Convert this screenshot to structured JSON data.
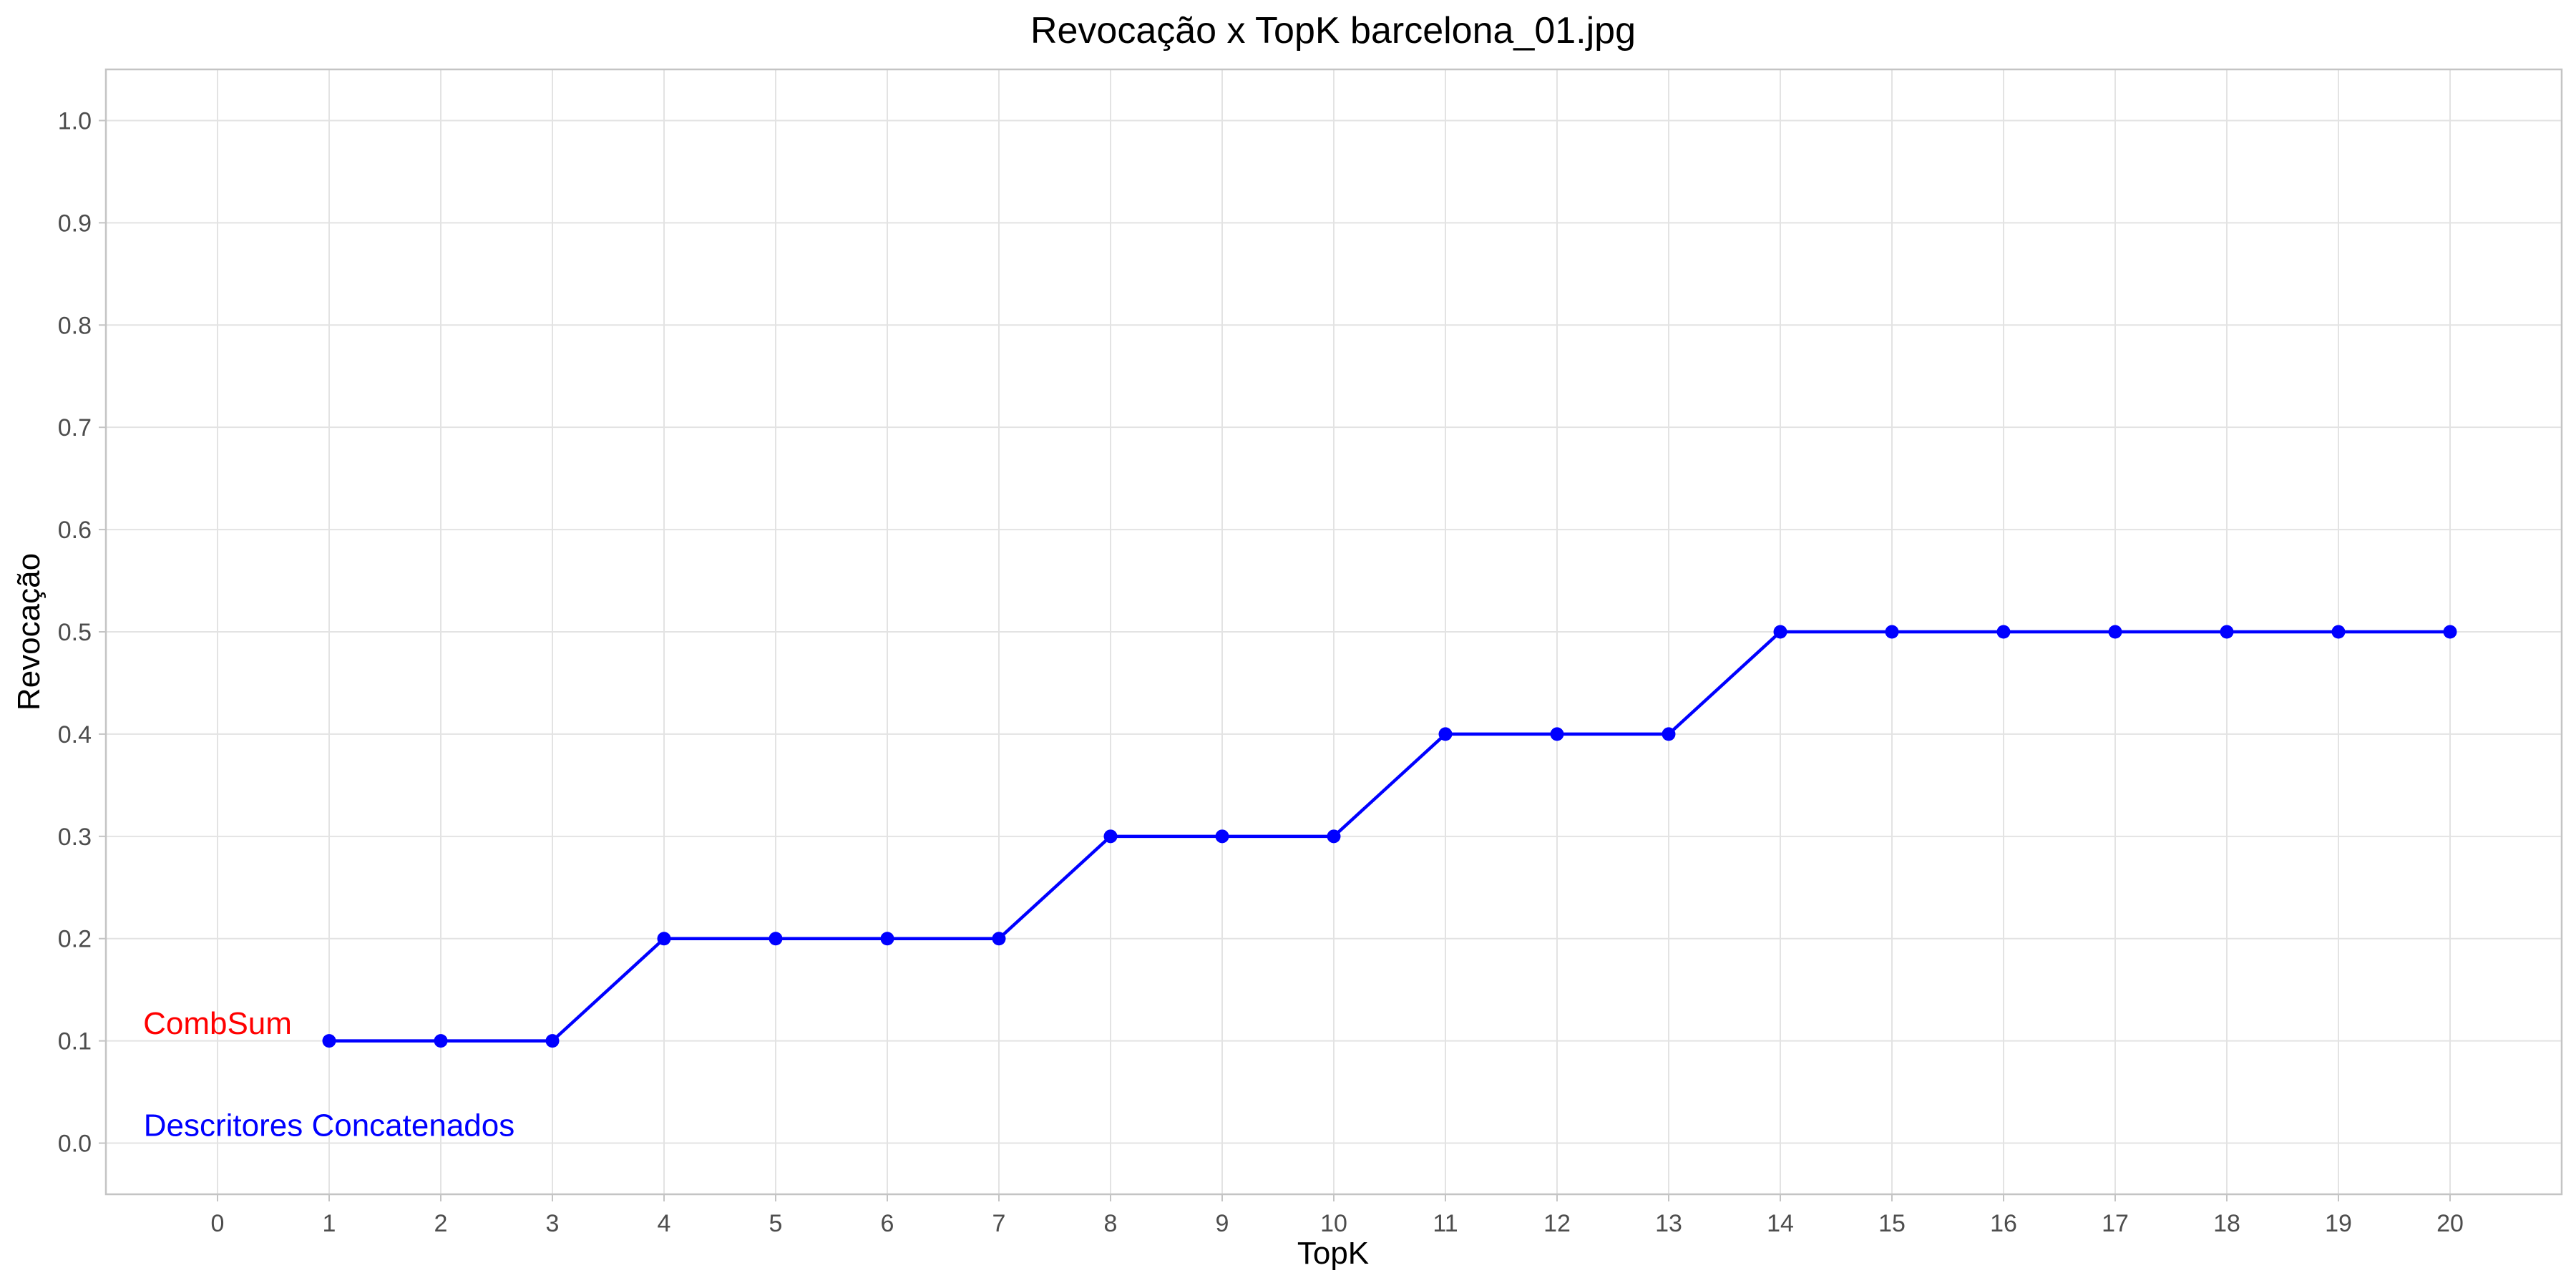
{
  "chart_data": {
    "type": "line",
    "title": "Revocação x TopK barcelona_01.jpg",
    "xlabel": "TopK",
    "ylabel": "Revocação",
    "x_ticks": [
      0,
      1,
      2,
      3,
      4,
      5,
      6,
      7,
      8,
      9,
      10,
      11,
      12,
      13,
      14,
      15,
      16,
      17,
      18,
      19,
      20
    ],
    "y_ticks": [
      "0.0",
      "0.1",
      "0.2",
      "0.3",
      "0.4",
      "0.5",
      "0.6",
      "0.7",
      "0.8",
      "0.9",
      "1.0"
    ],
    "xlim": [
      -1,
      21
    ],
    "ylim": [
      -0.05,
      1.05
    ],
    "grid": true,
    "series": [
      {
        "color": "#0000ff",
        "x": [
          1,
          2,
          3,
          4,
          5,
          6,
          7,
          8,
          9,
          10,
          11,
          12,
          13,
          14,
          15,
          16,
          17,
          18,
          19,
          20
        ],
        "values": [
          0.1,
          0.1,
          0.1,
          0.2,
          0.2,
          0.2,
          0.2,
          0.3,
          0.3,
          0.3,
          0.4,
          0.4,
          0.4,
          0.5,
          0.5,
          0.5,
          0.5,
          0.5,
          0.5,
          0.5
        ]
      }
    ],
    "annotations": [
      {
        "text": "CombSum",
        "color": "#ff0000",
        "x": 0,
        "y": 0.115
      },
      {
        "text": "Descritores Concatenados",
        "color": "#0000ff",
        "x": 1,
        "y": 0.015
      }
    ]
  }
}
